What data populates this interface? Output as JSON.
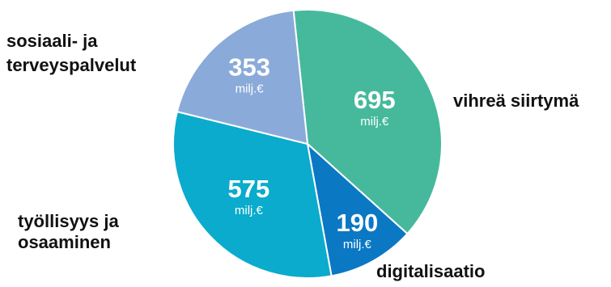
{
  "chart_data": {
    "type": "pie",
    "unit": "milj.€",
    "slices": [
      {
        "label": [
          "vihreä siirtymä"
        ],
        "value": 695,
        "value_text": "695",
        "color": "#46b99c"
      },
      {
        "label": [
          "digitalisaatio"
        ],
        "value": 190,
        "value_text": "190",
        "color": "#0b78c4"
      },
      {
        "label": [
          "työllisyys ja",
          "osaaminen"
        ],
        "value": 575,
        "value_text": "575",
        "color": "#0aabcc"
      },
      {
        "label": [
          "sosiaali- ja",
          "terveyspalvelut"
        ],
        "value": 353,
        "value_text": "353",
        "color": "#8aaad9"
      }
    ]
  }
}
